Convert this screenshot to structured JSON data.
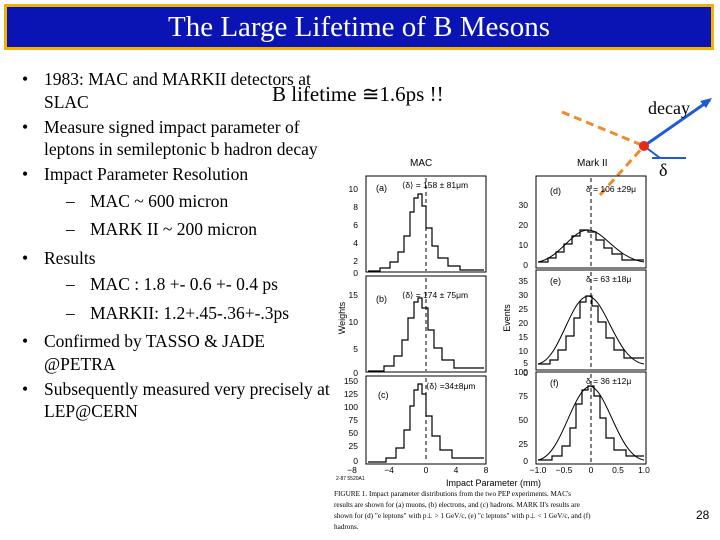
{
  "slide": {
    "title": "The Large Lifetime of B Mesons",
    "page_number": "28",
    "callout": "B lifetime ≅1.6ps !!",
    "decay_label": "decay",
    "delta_label": "δ"
  },
  "bullets": [
    {
      "text": "1983: MAC and MARKII detectors at SLAC"
    },
    {
      "text": "Measure signed impact parameter of leptons in semileptonic b hadron decay"
    },
    {
      "text": "Impact Parameter Resolution",
      "sub": [
        "MAC ~ 600 micron",
        "MARK II ~ 200 micron"
      ]
    },
    {
      "text": "Results",
      "sub": [
        "MAC : 1.8 +- 0.6 +- 0.4 ps",
        "MARKII: 1.2+.45-.36+-.3ps"
      ]
    },
    {
      "text": "Confirmed by TASSO & JADE @PETRA"
    },
    {
      "text": "Subsequently measured very precisely at LEP@CERN"
    }
  ],
  "figure": {
    "mac_title": "MAC",
    "markii_title": "Mark II",
    "y_label_left": "Weights",
    "y_label_right": "Events",
    "x_label": "Impact Parameter  (mm)",
    "figure_code": "2-87 5520A1",
    "panels": [
      {
        "label": "(a)",
        "stat": "⟨δ⟩ = 158 ± 81μm",
        "yticks": [
          "10",
          "8",
          "6",
          "4",
          "2",
          "0"
        ]
      },
      {
        "label": "(b)",
        "stat": "⟨δ⟩ = 174 ± 75μm",
        "yticks": [
          "15",
          "10",
          "5",
          "0"
        ]
      },
      {
        "label": "(c)",
        "stat": "⟨δ⟩ =34±8μm",
        "yticks": [
          "150",
          "125",
          "100",
          "75",
          "50",
          "25",
          "0"
        ]
      },
      {
        "label": "(d)",
        "stat": "δ = 106 ±29μ",
        "yticks": [
          "30",
          "20",
          "10",
          "0"
        ]
      },
      {
        "label": "(e)",
        "stat": "δ = 63 ±18μ",
        "yticks": [
          "35",
          "30",
          "25",
          "20",
          "15",
          "10",
          "5",
          "0"
        ]
      },
      {
        "label": "(f)",
        "stat": "δ = 36 ±12μ",
        "yticks": [
          "100",
          "75",
          "50",
          "25",
          "0"
        ]
      }
    ],
    "mac_xticks": [
      "−8",
      "−4",
      "0",
      "4",
      "8"
    ],
    "markii_xticks": [
      "−1.0",
      "−0.5",
      "0",
      "0.5",
      "1.0"
    ],
    "caption": [
      "FIGURE 1.  Impact parameter distributions from the two PEP experiments. MAC's",
      "results are shown for (a) muons, (b) electrons, and (c) hadrons. MARK II's results are",
      "shown for (d) \"e leptons\" with p⊥ > 1 GeV/c, (e) \"c leptons\" with p⊥ < 1 GeV/c, and (f)",
      "hadrons."
    ]
  }
}
